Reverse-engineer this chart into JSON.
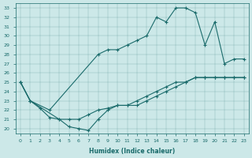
{
  "xlabel": "Humidex (Indice chaleur)",
  "bg_color": "#cce8e8",
  "line_color": "#1a6b6b",
  "xlim": [
    -0.5,
    23.5
  ],
  "ylim": [
    19.5,
    33.5
  ],
  "xticks": [
    0,
    1,
    2,
    3,
    4,
    5,
    6,
    7,
    8,
    9,
    10,
    11,
    12,
    13,
    14,
    15,
    16,
    17,
    18,
    19,
    20,
    21,
    22,
    23
  ],
  "yticks": [
    20,
    21,
    22,
    23,
    24,
    25,
    26,
    27,
    28,
    29,
    30,
    31,
    32,
    33
  ],
  "series1_x": [
    0,
    1,
    2,
    3,
    4,
    5,
    6,
    7,
    8,
    9,
    10,
    11,
    12,
    13,
    14,
    15,
    16,
    17,
    18,
    19,
    20,
    21,
    22,
    23
  ],
  "series1_y": [
    25.0,
    23.0,
    22.2,
    21.2,
    21.0,
    21.0,
    21.0,
    21.5,
    22.0,
    22.2,
    22.5,
    22.5,
    23.0,
    23.5,
    24.0,
    24.5,
    25.0,
    25.0,
    25.5,
    25.5,
    25.5,
    25.5,
    25.5,
    25.5
  ],
  "series2_x": [
    0,
    1,
    3,
    8,
    9,
    10,
    11,
    12,
    13,
    14,
    15,
    16,
    17,
    18,
    19,
    20,
    21,
    22,
    23
  ],
  "series2_y": [
    25.0,
    23.0,
    22.0,
    28.0,
    28.5,
    28.5,
    29.0,
    29.5,
    30.0,
    32.0,
    31.5,
    33.0,
    33.0,
    32.5,
    29.0,
    31.5,
    27.0,
    27.5,
    27.5
  ],
  "series3_x": [
    0,
    1,
    4,
    5,
    6,
    7,
    8,
    9,
    10,
    11,
    12,
    13,
    14,
    15,
    16,
    17,
    18,
    19,
    20,
    21,
    22,
    23
  ],
  "series3_y": [
    25.0,
    23.0,
    21.0,
    20.2,
    20.0,
    19.8,
    21.0,
    22.0,
    22.5,
    22.5,
    22.5,
    23.0,
    23.5,
    24.0,
    24.5,
    25.0,
    25.5,
    25.5,
    25.5,
    25.5,
    25.5,
    25.5
  ]
}
